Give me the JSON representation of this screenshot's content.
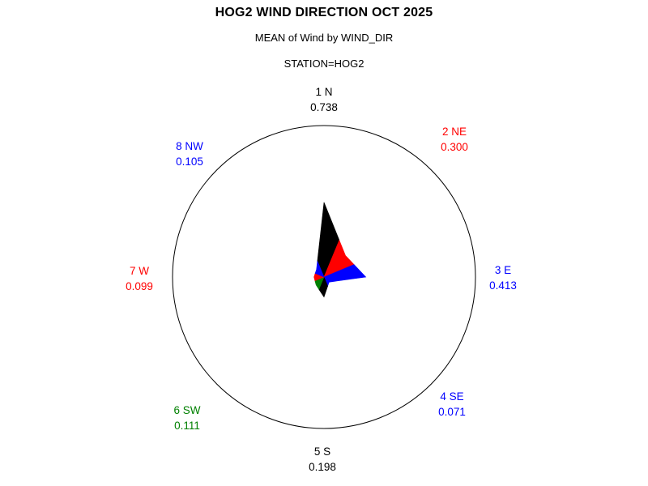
{
  "chart_data": {
    "type": "star",
    "title": "HOG2 WIND DIRECTION OCT 2025",
    "subtitle": "MEAN of Wind by WIND_DIR",
    "byline": "STATION=HOG2",
    "categories": [
      "1 N",
      "2 NE",
      "3 E",
      "4 SE",
      "5 S",
      "6 SW",
      "7 W",
      "8 NW"
    ],
    "values": [
      0.738,
      0.3,
      0.413,
      0.071,
      0.198,
      0.111,
      0.099,
      0.105
    ],
    "value_labels": [
      "0.738",
      "0.300",
      "0.413",
      "0.071",
      "0.198",
      "0.111",
      "0.099",
      "0.105"
    ],
    "colors": [
      "#000000",
      "#ff0000",
      "#0000ff",
      "#0000ff",
      "#000000",
      "#008000",
      "#ff0000",
      "#0000ff"
    ],
    "angles_deg": [
      90,
      45,
      0,
      -45,
      -90,
      -135,
      -180,
      -225
    ],
    "axis": {
      "min": 0,
      "ring_value": 1.5,
      "grid": "single-circle",
      "legend": "none"
    },
    "background": "#ffffff",
    "outline_color": "#000000"
  }
}
